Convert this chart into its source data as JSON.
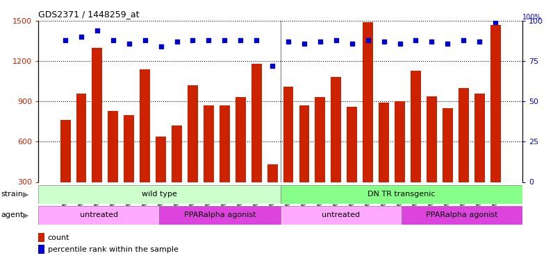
{
  "title": "GDS2371 / 1448259_at",
  "samples": [
    "GSM67362",
    "GSM67363",
    "GSM67364",
    "GSM67365",
    "GSM67366",
    "GSM67367",
    "GSM67368",
    "GSM67376",
    "GSM67377",
    "GSM67378",
    "GSM67379",
    "GSM67380",
    "GSM67381",
    "GSM67382",
    "GSM67369",
    "GSM67370",
    "GSM67371",
    "GSM67372",
    "GSM67373",
    "GSM67374",
    "GSM67375",
    "GSM67383",
    "GSM67384",
    "GSM67385",
    "GSM67386",
    "GSM67387",
    "GSM67388",
    "GSM67389"
  ],
  "counts": [
    760,
    960,
    1300,
    830,
    800,
    1140,
    640,
    720,
    1020,
    870,
    870,
    930,
    1180,
    430,
    1010,
    870,
    930,
    1080,
    860,
    1490,
    890,
    900,
    1130,
    940,
    850,
    1000,
    960,
    1470
  ],
  "percentiles": [
    88,
    90,
    94,
    88,
    86,
    88,
    84,
    87,
    88,
    88,
    88,
    88,
    88,
    72,
    87,
    86,
    87,
    88,
    86,
    88,
    87,
    86,
    88,
    87,
    86,
    88,
    87,
    99
  ],
  "bar_color": "#cc2200",
  "dot_color": "#0000cc",
  "ylim_left": [
    300,
    1500
  ],
  "ylim_right": [
    0,
    100
  ],
  "yticks_left": [
    300,
    600,
    900,
    1200,
    1500
  ],
  "yticks_right": [
    0,
    25,
    50,
    75,
    100
  ],
  "strain_groups": [
    {
      "label": "wild type",
      "start": 0,
      "end": 14,
      "color": "#ccffcc"
    },
    {
      "label": "DN TR transgenic",
      "start": 14,
      "end": 28,
      "color": "#88ff88"
    }
  ],
  "agent_groups": [
    {
      "label": "untreated",
      "start": 0,
      "end": 7,
      "color": "#ffaaff"
    },
    {
      "label": "PPARalpha agonist",
      "start": 7,
      "end": 14,
      "color": "#dd44dd"
    },
    {
      "label": "untreated",
      "start": 14,
      "end": 21,
      "color": "#ffaaff"
    },
    {
      "label": "PPARalpha agonist",
      "start": 21,
      "end": 28,
      "color": "#dd44dd"
    }
  ],
  "legend_count_label": "count",
  "legend_pct_label": "percentile rank within the sample",
  "strain_label": "strain",
  "agent_label": "agent",
  "background_color": "#ffffff"
}
